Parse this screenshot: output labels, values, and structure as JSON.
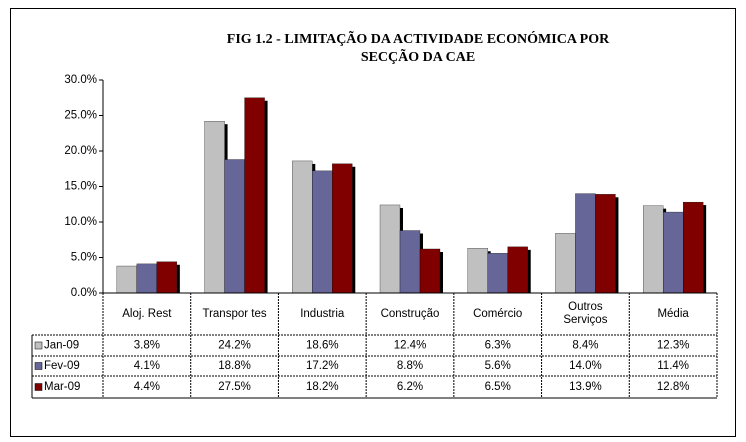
{
  "chart_data": {
    "type": "bar",
    "title": "FIG 1.2 - LIMITAÇÃO DA ACTIVIDADE ECONÓMICA POR",
    "subtitle": "SECÇÃO DA CAE",
    "categories": [
      "Aloj. Rest",
      "Transpor tes",
      "Industria",
      "Construção",
      "Comércio",
      "Outros Serviços",
      "Média"
    ],
    "series": [
      {
        "name": "Jan-09",
        "color": "#c0c0c0",
        "values": [
          3.8,
          24.2,
          18.6,
          12.4,
          6.3,
          8.4,
          12.3
        ],
        "value_labels": [
          "3.8%",
          "24.2%",
          "18.6%",
          "12.4%",
          "6.3%",
          "8.4%",
          "12.3%"
        ]
      },
      {
        "name": "Fev-09",
        "color": "#666699",
        "values": [
          4.1,
          18.8,
          17.2,
          8.8,
          5.6,
          14.0,
          11.4
        ],
        "value_labels": [
          "4.1%",
          "18.8%",
          "17.2%",
          "8.8%",
          "5.6%",
          "14.0%",
          "11.4%"
        ]
      },
      {
        "name": "Mar-09",
        "color": "#800000",
        "values": [
          4.4,
          27.5,
          18.2,
          6.2,
          6.5,
          13.9,
          12.8
        ],
        "value_labels": [
          "4.4%",
          "27.5%",
          "18.2%",
          "6.2%",
          "6.5%",
          "13.9%",
          "12.8%"
        ]
      }
    ],
    "ylim": [
      0,
      30
    ],
    "yticks": [
      {
        "value": 0,
        "label": "0.0%"
      },
      {
        "value": 5,
        "label": "5.0%"
      },
      {
        "value": 10,
        "label": "10.0%"
      },
      {
        "value": 15,
        "label": "15.0%"
      },
      {
        "value": 20,
        "label": "20.0%"
      },
      {
        "value": 25,
        "label": "25.0%"
      },
      {
        "value": 30,
        "label": "30.0%"
      }
    ],
    "grid": false
  }
}
